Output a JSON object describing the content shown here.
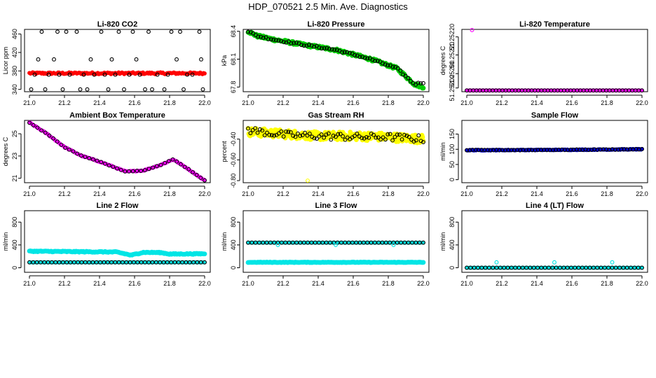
{
  "figure_title": "HDP_070521  2.5 Min. Ave. Diagnostics",
  "colors": {
    "red": "#ff0000",
    "green": "#00cc00",
    "magenta": "#ff00ff",
    "yellow": "#ffff00",
    "blue": "#0000cc",
    "cyan": "#00e5e5",
    "black": "#000000"
  },
  "chart_data": [
    {
      "type": "scatter",
      "title": "Li-820 CO2",
      "ylabel": "Licor ppm",
      "xlabel": "",
      "xlim": [
        21.0,
        22.0
      ],
      "ylim": [
        335,
        470
      ],
      "xticks": [
        "21.0",
        "21.2",
        "21.4",
        "21.6",
        "21.8",
        "22.0"
      ],
      "yticks": [
        {
          "v": 340,
          "l": "340"
        },
        {
          "v": 380,
          "l": "380"
        },
        {
          "v": 420,
          "l": "420"
        },
        {
          "v": 460,
          "l": "460"
        }
      ],
      "series": [
        {
          "name": "co2_red",
          "color": "red",
          "style": "dense",
          "x": [
            21.0,
            22.0
          ],
          "y": [
            375,
            375
          ],
          "noise": 2,
          "n": 160,
          "marker": 2.5
        },
        {
          "name": "co2_black",
          "color": "black",
          "style": "points",
          "x": [
            21.01,
            21.03,
            21.05,
            21.07,
            21.09,
            21.11,
            21.14,
            21.16,
            21.17,
            21.19,
            21.21,
            21.23,
            21.27,
            21.29,
            21.31,
            21.33,
            21.35,
            21.37,
            21.41,
            21.43,
            21.45,
            21.47,
            21.49,
            21.51,
            21.54,
            21.57,
            21.59,
            21.61,
            21.63,
            21.66,
            21.68,
            21.7,
            21.73,
            21.77,
            21.79,
            21.81,
            21.84,
            21.86,
            21.88,
            21.9,
            21.93,
            21.97,
            21.98,
            21.99
          ],
          "y": [
            340,
            372,
            405,
            465,
            340,
            372,
            405,
            465,
            372,
            340,
            465,
            372,
            465,
            340,
            372,
            340,
            405,
            372,
            465,
            372,
            340,
            405,
            372,
            465,
            340,
            372,
            465,
            405,
            372,
            340,
            465,
            340,
            372,
            340,
            372,
            465,
            405,
            465,
            340,
            372,
            372,
            465,
            405,
            340
          ]
        }
      ]
    },
    {
      "type": "scatter",
      "title": "Li-820 Pressure",
      "ylabel": "kPa",
      "xlabel": "",
      "xlim": [
        21.0,
        22.0
      ],
      "ylim": [
        67.75,
        68.42
      ],
      "xticks": [
        "21.0",
        "21.2",
        "21.4",
        "21.6",
        "21.8",
        "22.0"
      ],
      "yticks": [
        {
          "v": 67.8,
          "l": "67.8"
        },
        {
          "v": 68.1,
          "l": "68.1"
        },
        {
          "v": 68.4,
          "l": "68.4"
        }
      ],
      "series": [
        {
          "name": "pressure_green",
          "color": "green",
          "style": "dense",
          "x": [
            21.0,
            21.05,
            21.15,
            21.3,
            21.5,
            21.7,
            21.85,
            21.95,
            22.0
          ],
          "y": [
            68.4,
            68.35,
            68.31,
            68.26,
            68.2,
            68.1,
            68.0,
            67.83,
            67.8
          ],
          "noise": 0.015,
          "n": 220,
          "marker": 3
        },
        {
          "name": "pressure_black",
          "color": "black",
          "style": "sample",
          "x": [
            21.0,
            21.05,
            21.15,
            21.3,
            21.5,
            21.7,
            21.85,
            21.95,
            22.0
          ],
          "y": [
            68.4,
            68.35,
            68.31,
            68.26,
            68.2,
            68.1,
            68.0,
            67.83,
            67.85
          ],
          "noise": 0.01,
          "n": 70,
          "marker": 2.5
        }
      ]
    },
    {
      "type": "scatter",
      "title": "Li-820 Temperature",
      "ylabel": "degrees C",
      "xlabel": "",
      "xlim": [
        21.0,
        22.0
      ],
      "ylim": [
        0,
        10
      ],
      "xticks": [
        "21.0",
        "21.2",
        "21.4",
        "21.6",
        "21.8",
        "22.0"
      ],
      "yticks": [
        {
          "v": 0.6,
          "l": "51.25200"
        },
        {
          "v": 2.9,
          "l": "51.25200"
        },
        {
          "v": 5.9,
          "l": "51.25220"
        },
        {
          "v": 8.8,
          "l": "51.25220"
        }
      ],
      "series": [
        {
          "name": "temp_magenta",
          "color": "magenta",
          "style": "dense",
          "x": [
            21.0,
            22.0
          ],
          "y": [
            0.2,
            0.2
          ],
          "noise": 0,
          "n": 110,
          "marker": 2.5
        },
        {
          "name": "temp_black",
          "color": "black",
          "style": "sample",
          "x": [
            21.0,
            22.0
          ],
          "y": [
            0.2,
            0.2
          ],
          "noise": 0,
          "n": 55,
          "marker": 2.5
        },
        {
          "name": "temp_outlier",
          "color": "magenta",
          "style": "points",
          "x": [
            21.03
          ],
          "y": [
            9.9
          ]
        }
      ]
    },
    {
      "type": "scatter",
      "title": "Ambient Box Temperature",
      "ylabel": "degrees C",
      "xlabel": "",
      "xlim": [
        21.0,
        22.0
      ],
      "ylim": [
        20.6,
        26.2
      ],
      "xticks": [
        "21.0",
        "21.2",
        "21.4",
        "21.6",
        "21.8",
        "22.0"
      ],
      "yticks": [
        {
          "v": 21,
          "l": "21"
        },
        {
          "v": 23,
          "l": "23"
        },
        {
          "v": 25,
          "l": "25"
        }
      ],
      "series": [
        {
          "name": "box_magenta",
          "color": "magenta",
          "style": "dense",
          "x": [
            21.0,
            21.1,
            21.2,
            21.3,
            21.4,
            21.5,
            21.55,
            21.65,
            21.75,
            21.82,
            21.9,
            22.0
          ],
          "y": [
            26.0,
            25.0,
            23.8,
            23.0,
            22.5,
            21.9,
            21.6,
            21.7,
            22.2,
            22.7,
            21.9,
            20.8
          ],
          "noise": 0.04,
          "n": 140,
          "marker": 2.5
        },
        {
          "name": "box_black",
          "color": "black",
          "style": "sample",
          "x": [
            21.0,
            21.1,
            21.2,
            21.3,
            21.4,
            21.5,
            21.55,
            21.65,
            21.75,
            21.82,
            21.9,
            22.0
          ],
          "y": [
            26.0,
            25.0,
            23.8,
            23.0,
            22.5,
            21.9,
            21.6,
            21.7,
            22.2,
            22.7,
            21.9,
            20.8
          ],
          "noise": 0.02,
          "n": 45,
          "marker": 2.5
        }
      ]
    },
    {
      "type": "scatter",
      "title": "Gas Stream RH",
      "ylabel": "percent",
      "xlabel": "",
      "xlim": [
        21.0,
        22.0
      ],
      "ylim": [
        -0.82,
        -0.22
      ],
      "xticks": [
        "21.0",
        "21.2",
        "21.4",
        "21.6",
        "21.8",
        "22.0"
      ],
      "yticks": [
        {
          "v": -0.8,
          "l": "-0.80"
        },
        {
          "v": -0.6,
          "l": "-0.60"
        },
        {
          "v": -0.4,
          "l": "-0.40"
        }
      ],
      "series": [
        {
          "name": "rh_yellow",
          "color": "yellow",
          "style": "dense",
          "x": [
            21.0,
            21.2,
            21.4,
            21.6,
            21.8,
            22.0
          ],
          "y": [
            -0.33,
            -0.35,
            -0.37,
            -0.37,
            -0.38,
            -0.4
          ],
          "noise": 0.04,
          "n": 260,
          "marker": 3
        },
        {
          "name": "rh_black",
          "color": "black",
          "style": "sample",
          "x": [
            21.0,
            21.2,
            21.4,
            21.6,
            21.8,
            22.0
          ],
          "y": [
            -0.31,
            -0.36,
            -0.37,
            -0.38,
            -0.38,
            -0.4
          ],
          "noise": 0.035,
          "n": 75,
          "marker": 2.5
        },
        {
          "name": "rh_outlier",
          "color": "yellow",
          "style": "points",
          "x": [
            21.34
          ],
          "y": [
            -0.8
          ]
        }
      ]
    },
    {
      "type": "scatter",
      "title": "Sample Flow",
      "ylabel": "ml/min",
      "xlabel": "",
      "xlim": [
        21.0,
        22.0
      ],
      "ylim": [
        -10,
        195
      ],
      "xticks": [
        "21.0",
        "21.2",
        "21.4",
        "21.6",
        "21.8",
        "22.0"
      ],
      "yticks": [
        {
          "v": 0,
          "l": "0"
        },
        {
          "v": 50,
          "l": "50"
        },
        {
          "v": 100,
          "l": "100"
        },
        {
          "v": 150,
          "l": "150"
        }
      ],
      "series": [
        {
          "name": "flow_blue",
          "color": "blue",
          "style": "dense",
          "x": [
            21.0,
            21.5,
            22.0
          ],
          "y": [
            97,
            98,
            100
          ],
          "noise": 1.2,
          "n": 170,
          "marker": 2.5
        },
        {
          "name": "flow_black",
          "color": "black",
          "style": "sample",
          "x": [
            21.0,
            21.5,
            22.0
          ],
          "y": [
            97,
            98,
            100
          ],
          "noise": 1,
          "n": 60,
          "marker": 2.5
        }
      ]
    },
    {
      "type": "scatter",
      "title": "Line 2 Flow",
      "ylabel": "ml/min",
      "xlabel": "",
      "xlim": [
        21.0,
        22.0
      ],
      "ylim": [
        -80,
        1000
      ],
      "xticks": [
        "21.0",
        "21.2",
        "21.4",
        "21.6",
        "21.8",
        "22.0"
      ],
      "yticks": [
        {
          "v": 0,
          "l": "0"
        },
        {
          "v": 400,
          "l": "400"
        },
        {
          "v": 800,
          "l": "800"
        }
      ],
      "series": [
        {
          "name": "line2_upper",
          "color": "cyan",
          "style": "dense",
          "x": [
            21.0,
            21.15,
            21.5,
            21.58,
            21.65,
            21.75,
            21.8,
            22.0
          ],
          "y": [
            290,
            285,
            275,
            220,
            270,
            265,
            240,
            245
          ],
          "noise": 8,
          "n": 170,
          "marker": 3
        },
        {
          "name": "line2_lower",
          "color": "cyan",
          "style": "dense",
          "x": [
            21.0,
            22.0
          ],
          "y": [
            95,
            95
          ],
          "noise": 2,
          "n": 110,
          "marker": 2.5
        },
        {
          "name": "line2_black",
          "color": "black",
          "style": "sample",
          "x": [
            21.0,
            22.0
          ],
          "y": [
            95,
            95
          ],
          "noise": 0,
          "n": 48,
          "marker": 2.5
        }
      ]
    },
    {
      "type": "scatter",
      "title": "Line 3 Flow",
      "ylabel": "ml/min",
      "xlabel": "",
      "xlim": [
        21.0,
        22.0
      ],
      "ylim": [
        -80,
        1000
      ],
      "xticks": [
        "21.0",
        "21.2",
        "21.4",
        "21.6",
        "21.8",
        "22.0"
      ],
      "yticks": [
        {
          "v": 0,
          "l": "0"
        },
        {
          "v": 400,
          "l": "400"
        },
        {
          "v": 800,
          "l": "800"
        }
      ],
      "series": [
        {
          "name": "line3_lower",
          "color": "cyan",
          "style": "dense",
          "x": [
            21.0,
            22.0
          ],
          "y": [
            95,
            95
          ],
          "noise": 4,
          "n": 160,
          "marker": 3
        },
        {
          "name": "line3_upper",
          "color": "cyan",
          "style": "dense",
          "x": [
            21.0,
            22.0
          ],
          "y": [
            440,
            440
          ],
          "noise": 0,
          "n": 90,
          "marker": 2.5
        },
        {
          "name": "line3_black",
          "color": "black",
          "style": "sample",
          "x": [
            21.0,
            22.0
          ],
          "y": [
            440,
            440
          ],
          "noise": 0,
          "n": 48,
          "marker": 2.5
        },
        {
          "name": "line3_dips",
          "color": "cyan",
          "style": "points",
          "x": [
            21.17,
            21.5,
            21.83
          ],
          "y": [
            400,
            400,
            400
          ]
        }
      ]
    },
    {
      "type": "scatter",
      "title": "Line 4 (LT) Flow",
      "ylabel": "ml/min",
      "xlabel": "",
      "xlim": [
        21.0,
        22.0
      ],
      "ylim": [
        -80,
        1000
      ],
      "xticks": [
        "21.0",
        "21.2",
        "21.4",
        "21.6",
        "21.8",
        "22.0"
      ],
      "yticks": [
        {
          "v": 0,
          "l": "0"
        },
        {
          "v": 400,
          "l": "400"
        },
        {
          "v": 800,
          "l": "800"
        }
      ],
      "series": [
        {
          "name": "line4_cyan",
          "color": "cyan",
          "style": "dense",
          "x": [
            21.0,
            22.0
          ],
          "y": [
            0,
            0
          ],
          "noise": 0,
          "n": 90,
          "marker": 2.5
        },
        {
          "name": "line4_black",
          "color": "black",
          "style": "sample",
          "x": [
            21.0,
            22.0
          ],
          "y": [
            0,
            0
          ],
          "noise": 0,
          "n": 48,
          "marker": 2.5
        },
        {
          "name": "line4_spikes",
          "color": "cyan",
          "style": "points",
          "x": [
            21.17,
            21.5,
            21.83
          ],
          "y": [
            95,
            95,
            95
          ]
        }
      ]
    }
  ]
}
